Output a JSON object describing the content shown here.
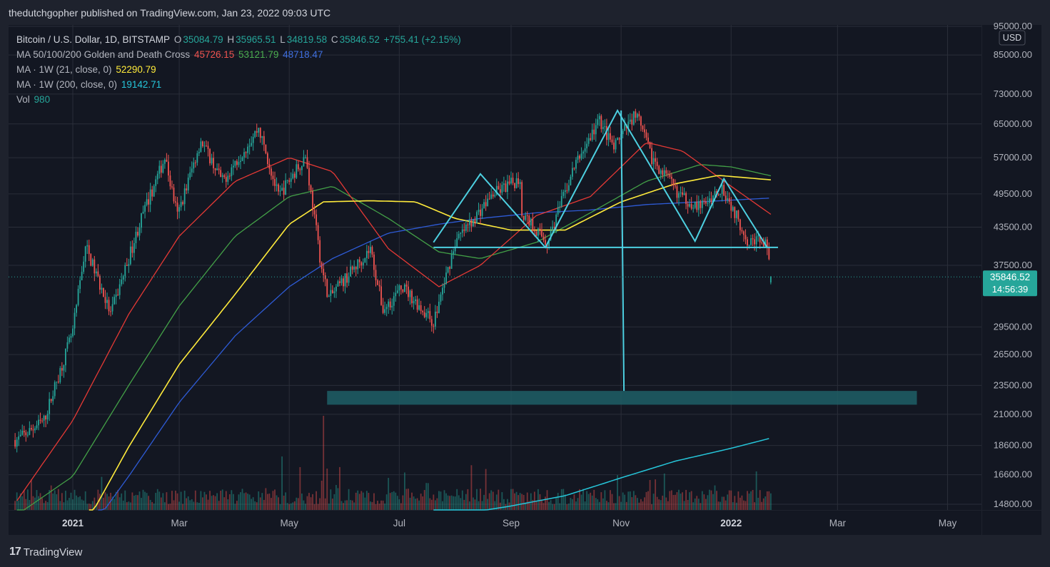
{
  "header": {
    "publisher": "thedutchgopher published on TradingView.com, Jan 23, 2022 09:03 UTC"
  },
  "legend": {
    "symbol": "Bitcoin / U.S. Dollar, 1D, BITSTAMP",
    "o_label": "O",
    "o": "35084.79",
    "h_label": "H",
    "h": "35965.51",
    "l_label": "L",
    "l": "34819.58",
    "c_label": "C",
    "c": "35846.52",
    "change": "+755.41 (+2.15%)",
    "ma1_title": "MA 50/100/200 Golden and Death Cross",
    "ma1_v1": "45726.15",
    "ma1_v2": "53121.79",
    "ma1_v3": "48718.47",
    "ma2_title": "MA · 1W (21, close, 0)",
    "ma2_v": "52290.79",
    "ma3_title": "MA · 1W (200, close, 0)",
    "ma3_v": "19142.71",
    "vol_title": "Vol",
    "vol_v": "980"
  },
  "colors": {
    "up": "#26a69a",
    "down": "#ef5350",
    "ma50": "#e53935",
    "ma100": "#43a047",
    "ma200": "#2e5bd6",
    "ma21w": "#ffeb3b",
    "ma200w": "#26c6da",
    "drawing": "#4dd0e1",
    "target_zone": "#1f5f66"
  },
  "brand": {
    "logo": "17",
    "name": "TradingView"
  },
  "chart_data": {
    "type": "candlestick",
    "scale": "log",
    "currency": "USD",
    "ylim": [
      14000,
      95000
    ],
    "price_ticks": [
      "95000.00",
      "85000.00",
      "73000.00",
      "65000.00",
      "57000.00",
      "49500.00",
      "43500.00",
      "37500.00",
      "29500.00",
      "26500.00",
      "23500.00",
      "21000.00",
      "18600.00",
      "16600.00",
      "14800.00"
    ],
    "x_labels": [
      "2021",
      "Mar",
      "May",
      "Jul",
      "Sep",
      "Nov",
      "2022",
      "Mar",
      "May"
    ],
    "last_price": "35846.52",
    "countdown": "14:56:39",
    "price_anchors": [
      [
        "2020-12-01",
        19000
      ],
      [
        "2020-12-16",
        20500
      ],
      [
        "2021-01-01",
        29000
      ],
      [
        "2021-01-08",
        40500
      ],
      [
        "2021-01-22",
        31000
      ],
      [
        "2021-02-08",
        45000
      ],
      [
        "2021-02-21",
        57000
      ],
      [
        "2021-02-28",
        45500
      ],
      [
        "2021-03-13",
        61000
      ],
      [
        "2021-03-25",
        52000
      ],
      [
        "2021-04-14",
        64000
      ],
      [
        "2021-04-25",
        49000
      ],
      [
        "2021-05-10",
        57500
      ],
      [
        "2021-05-19",
        37000
      ],
      [
        "2021-05-23",
        33000
      ],
      [
        "2021-06-15",
        40000
      ],
      [
        "2021-06-22",
        31500
      ],
      [
        "2021-07-03",
        34500
      ],
      [
        "2021-07-20",
        30000
      ],
      [
        "2021-08-01",
        41000
      ],
      [
        "2021-08-22",
        49500
      ],
      [
        "2021-09-06",
        52500
      ],
      [
        "2021-09-07",
        46000
      ],
      [
        "2021-09-21",
        41000
      ],
      [
        "2021-10-06",
        55000
      ],
      [
        "2021-10-20",
        66000
      ],
      [
        "2021-10-28",
        59000
      ],
      [
        "2021-11-09",
        68000
      ],
      [
        "2021-11-18",
        57000
      ],
      [
        "2021-12-04",
        49000
      ],
      [
        "2021-12-15",
        47000
      ],
      [
        "2021-12-27",
        51000
      ],
      [
        "2022-01-10",
        41500
      ],
      [
        "2022-01-20",
        41000
      ],
      [
        "2022-01-23",
        35846.52
      ]
    ],
    "ma50_anchors": [
      [
        "2020-12-01",
        15000
      ],
      [
        "2021-01-01",
        20500
      ],
      [
        "2021-02-01",
        31000
      ],
      [
        "2021-03-01",
        42000
      ],
      [
        "2021-04-01",
        52000
      ],
      [
        "2021-05-01",
        57000
      ],
      [
        "2021-05-25",
        54000
      ],
      [
        "2021-06-25",
        40000
      ],
      [
        "2021-07-23",
        34500
      ],
      [
        "2021-08-15",
        37500
      ],
      [
        "2021-09-15",
        45500
      ],
      [
        "2021-10-15",
        49000
      ],
      [
        "2021-11-15",
        60500
      ],
      [
        "2021-12-05",
        58500
      ],
      [
        "2022-01-01",
        51000
      ],
      [
        "2022-01-23",
        45726.15
      ]
    ],
    "ma100_anchors": [
      [
        "2020-12-01",
        14200
      ],
      [
        "2021-01-01",
        16500
      ],
      [
        "2021-02-01",
        23500
      ],
      [
        "2021-03-01",
        32000
      ],
      [
        "2021-04-01",
        42000
      ],
      [
        "2021-05-01",
        49000
      ],
      [
        "2021-05-25",
        51000
      ],
      [
        "2021-06-25",
        45000
      ],
      [
        "2021-07-23",
        39500
      ],
      [
        "2021-08-15",
        38500
      ],
      [
        "2021-09-15",
        41000
      ],
      [
        "2021-10-15",
        46000
      ],
      [
        "2021-11-15",
        52000
      ],
      [
        "2021-12-15",
        55500
      ],
      [
        "2022-01-01",
        55000
      ],
      [
        "2022-01-23",
        53121.79
      ]
    ],
    "ma200_anchors": [
      [
        "2021-01-15",
        14000
      ],
      [
        "2021-02-01",
        16500
      ],
      [
        "2021-03-01",
        22000
      ],
      [
        "2021-04-01",
        28500
      ],
      [
        "2021-05-01",
        34500
      ],
      [
        "2021-05-25",
        38500
      ],
      [
        "2021-06-25",
        42500
      ],
      [
        "2021-07-23",
        44000
      ],
      [
        "2021-08-15",
        45000
      ],
      [
        "2021-09-15",
        46000
      ],
      [
        "2021-10-15",
        46500
      ],
      [
        "2021-11-15",
        47500
      ],
      [
        "2021-12-15",
        48000
      ],
      [
        "2022-01-23",
        48718.47
      ]
    ],
    "ma21w_anchors": [
      [
        "2021-01-10",
        14000
      ],
      [
        "2021-02-01",
        18500
      ],
      [
        "2021-03-01",
        25500
      ],
      [
        "2021-04-01",
        33500
      ],
      [
        "2021-05-01",
        44000
      ],
      [
        "2021-05-20",
        48000
      ],
      [
        "2021-06-15",
        48200
      ],
      [
        "2021-07-10",
        48000
      ],
      [
        "2021-08-01",
        45000
      ],
      [
        "2021-09-01",
        43000
      ],
      [
        "2021-10-01",
        43000
      ],
      [
        "2021-11-01",
        48000
      ],
      [
        "2021-12-01",
        51500
      ],
      [
        "2021-12-25",
        53200
      ],
      [
        "2022-01-23",
        52290.79
      ]
    ],
    "ma200w_anchors": [
      [
        "2021-07-20",
        14000
      ],
      [
        "2021-09-01",
        14700
      ],
      [
        "2021-10-01",
        15300
      ],
      [
        "2021-11-01",
        16400
      ],
      [
        "2021-12-01",
        17500
      ],
      [
        "2022-01-01",
        18400
      ],
      [
        "2022-01-23",
        19142.71
      ]
    ],
    "drawings": {
      "pattern_points": [
        [
          "2021-07-20",
          41000
        ],
        [
          "2021-08-15",
          53500
        ],
        [
          "2021-09-20",
          40200
        ],
        [
          "2021-10-30",
          68500
        ],
        [
          "2021-12-12",
          41200
        ],
        [
          "2021-12-28",
          52500
        ],
        [
          "2022-01-21",
          40200
        ]
      ],
      "neckline": {
        "x1": "2021-07-20",
        "x2": "2022-01-27",
        "price": 40200
      },
      "target_line": {
        "x": "2021-11-01",
        "y1": 68500,
        "y2": 23000
      },
      "target_zone": {
        "x1": "2021-05-22",
        "x2": "2022-04-14",
        "y1": 23000,
        "y2": 21800
      }
    }
  }
}
